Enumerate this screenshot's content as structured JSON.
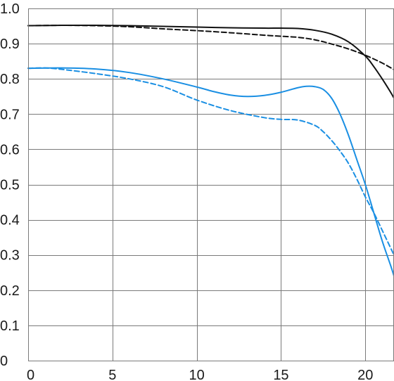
{
  "chart_data": {
    "type": "line",
    "title": "",
    "xlabel": "",
    "ylabel": "",
    "xlim": [
      0,
      21.7
    ],
    "ylim": [
      0,
      1.0
    ],
    "grid": true,
    "legend": "none",
    "x_ticks": [
      {
        "value": 0,
        "label": "0"
      },
      {
        "value": 5,
        "label": "5"
      },
      {
        "value": 10,
        "label": "10"
      },
      {
        "value": 15,
        "label": "15"
      },
      {
        "value": 20,
        "label": "20"
      }
    ],
    "y_ticks": [
      {
        "value": 0,
        "label": "0"
      },
      {
        "value": 0.1,
        "label": "0.1"
      },
      {
        "value": 0.2,
        "label": "0.2"
      },
      {
        "value": 0.3,
        "label": "0.3"
      },
      {
        "value": 0.4,
        "label": "0.4"
      },
      {
        "value": 0.5,
        "label": "0.5"
      },
      {
        "value": 0.6,
        "label": "0.6"
      },
      {
        "value": 0.7,
        "label": "0.7"
      },
      {
        "value": 0.8,
        "label": "0.8"
      },
      {
        "value": 0.9,
        "label": "0.9"
      },
      {
        "value": 1.0,
        "label": "1.0"
      }
    ],
    "series": [
      {
        "color": "#111111",
        "dash": "solid",
        "x": [
          0,
          2,
          4,
          6,
          8,
          10,
          12,
          14,
          15,
          16,
          17,
          18,
          19,
          20,
          20.5,
          21,
          21.5,
          21.7
        ],
        "y": [
          0.951,
          0.952,
          0.952,
          0.951,
          0.949,
          0.947,
          0.945,
          0.944,
          0.944,
          0.943,
          0.938,
          0.927,
          0.905,
          0.865,
          0.835,
          0.8,
          0.762,
          0.745
        ]
      },
      {
        "color": "#111111",
        "dash": "dashed",
        "x": [
          0,
          2,
          4,
          6,
          8,
          10,
          12,
          14,
          15,
          16,
          17,
          18,
          19,
          20,
          21,
          21.7
        ],
        "y": [
          0.951,
          0.952,
          0.951,
          0.948,
          0.942,
          0.937,
          0.931,
          0.924,
          0.921,
          0.918,
          0.911,
          0.899,
          0.885,
          0.867,
          0.845,
          0.826
        ]
      },
      {
        "color": "#1a8fe3",
        "dash": "solid",
        "x": [
          0,
          2,
          4,
          6,
          8,
          10,
          11,
          12,
          13,
          14,
          15,
          16,
          16.5,
          17,
          17.5,
          18,
          18.5,
          19,
          19.5,
          20,
          20.5,
          21,
          21.5,
          21.7
        ],
        "y": [
          0.83,
          0.831,
          0.828,
          0.818,
          0.8,
          0.777,
          0.764,
          0.754,
          0.75,
          0.753,
          0.762,
          0.775,
          0.779,
          0.778,
          0.77,
          0.745,
          0.7,
          0.64,
          0.57,
          0.5,
          0.42,
          0.34,
          0.27,
          0.24
        ]
      },
      {
        "color": "#1a8fe3",
        "dash": "dashed",
        "x": [
          0,
          1,
          2,
          4,
          6,
          8,
          10,
          12,
          14,
          15,
          16,
          17,
          17.5,
          18,
          18.5,
          19,
          19.5,
          20,
          20.5,
          21,
          21.5,
          21.7
        ],
        "y": [
          0.83,
          0.831,
          0.827,
          0.815,
          0.8,
          0.778,
          0.74,
          0.71,
          0.69,
          0.685,
          0.683,
          0.668,
          0.65,
          0.625,
          0.595,
          0.56,
          0.515,
          0.465,
          0.42,
          0.37,
          0.32,
          0.3
        ]
      }
    ]
  }
}
